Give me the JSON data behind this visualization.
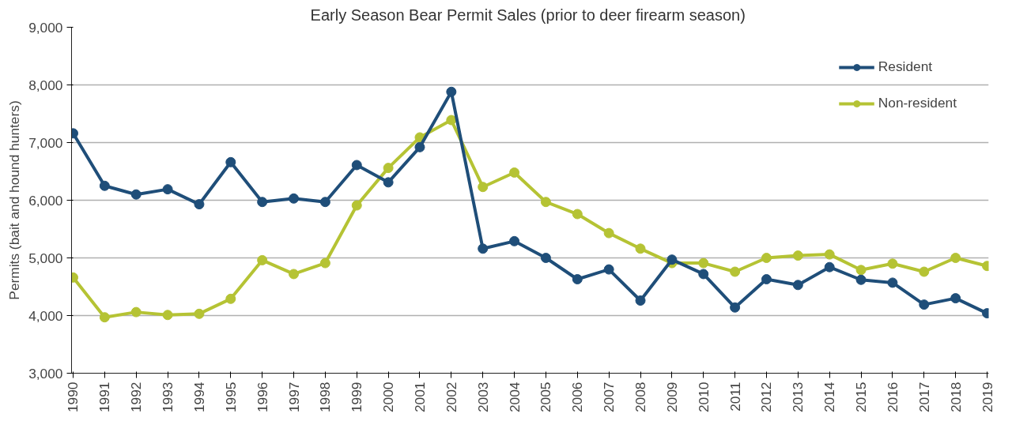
{
  "chart_data": {
    "type": "line",
    "title": "Early Season  Bear Permit Sales (prior to deer firearm season)",
    "ylabel": "Permits (bait and hound hunters)",
    "categories": [
      "1990",
      "1991",
      "1992",
      "1993",
      "1994",
      "1995",
      "1996",
      "1997",
      "1998",
      "1999",
      "2000",
      "2001",
      "2002",
      "2003",
      "2004",
      "2005",
      "2006",
      "2007",
      "2008",
      "2009",
      "2010",
      "2011",
      "2012",
      "2013",
      "2014",
      "2015",
      "2016",
      "2017",
      "2018",
      "2019"
    ],
    "series": [
      {
        "name": "Resident",
        "color": "#1f4e79",
        "values": [
          7160,
          6250,
          6100,
          6190,
          5930,
          6660,
          5970,
          6030,
          5970,
          6610,
          6310,
          6920,
          7880,
          5160,
          5290,
          5000,
          4630,
          4800,
          4260,
          4970,
          4720,
          4140,
          4630,
          4530,
          4840,
          4620,
          4570,
          4190,
          4300,
          4040
        ]
      },
      {
        "name": "Non-resident",
        "color": "#b5c334",
        "values": [
          4660,
          3970,
          4060,
          4010,
          4030,
          4290,
          4960,
          4720,
          4910,
          5910,
          6560,
          7090,
          7390,
          6230,
          6480,
          5970,
          5760,
          5430,
          5160,
          4910,
          4910,
          4760,
          5000,
          5040,
          5060,
          4790,
          4900,
          4760,
          5000,
          4860
        ]
      }
    ],
    "ylim": [
      3000,
      9000
    ],
    "yticks": [
      {
        "value": 3000,
        "label": "3,000"
      },
      {
        "value": 4000,
        "label": "4,000"
      },
      {
        "value": 5000,
        "label": "5,000"
      },
      {
        "value": 6000,
        "label": "6,000"
      },
      {
        "value": 7000,
        "label": "7,000"
      },
      {
        "value": 8000,
        "label": "8,000"
      },
      {
        "value": 9000,
        "label": "9,000"
      }
    ],
    "grid": "y",
    "legend": "top right",
    "marker": "circle",
    "line_style": "solid"
  }
}
